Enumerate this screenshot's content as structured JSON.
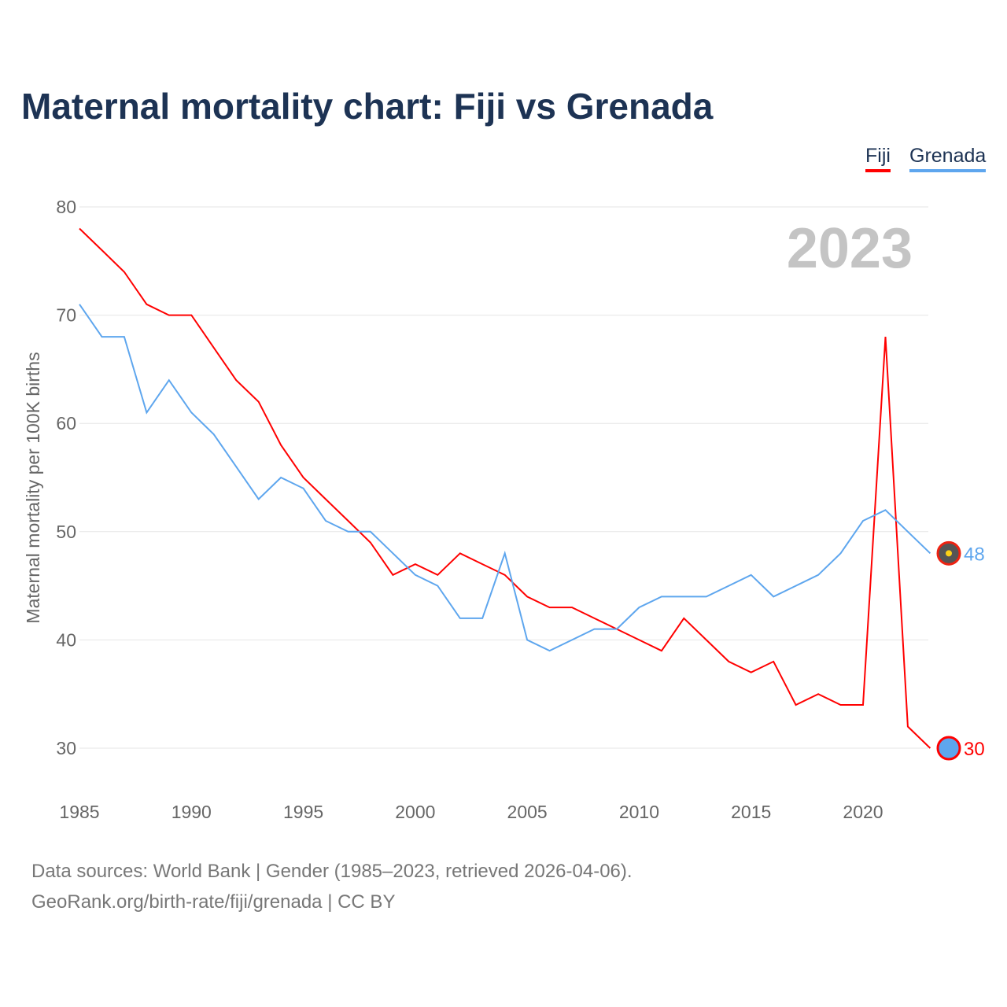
{
  "title": "Maternal mortality chart: Fiji vs Grenada",
  "year_label": "2023",
  "footer": {
    "line1": "Data sources: World Bank | Gender (1985–2023, retrieved 2026-04-06).",
    "line2": "GeoRank.org/birth-rate/fiji/grenada | CC BY"
  },
  "chart_data": {
    "type": "line",
    "title": "Maternal mortality chart: Fiji vs Grenada",
    "xlabel": "",
    "ylabel": "Maternal mortality per 100K births",
    "xlim": [
      1985,
      2023
    ],
    "ylim": [
      30,
      80
    ],
    "xticks": [
      1985,
      1990,
      1995,
      2000,
      2005,
      2010,
      2015,
      2020
    ],
    "yticks": [
      30,
      40,
      50,
      60,
      70,
      80
    ],
    "legend_position": "top-right",
    "x": [
      1985,
      1986,
      1987,
      1988,
      1989,
      1990,
      1991,
      1992,
      1993,
      1994,
      1995,
      1996,
      1997,
      1998,
      1999,
      2000,
      2001,
      2002,
      2003,
      2004,
      2005,
      2006,
      2007,
      2008,
      2009,
      2010,
      2011,
      2012,
      2013,
      2014,
      2015,
      2016,
      2017,
      2018,
      2019,
      2020,
      2021,
      2022,
      2023
    ],
    "series": [
      {
        "name": "Fiji",
        "color": "#ff0000",
        "end_label": "30",
        "values": [
          78,
          76,
          74,
          71,
          70,
          70,
          67,
          64,
          62,
          58,
          55,
          53,
          51,
          49,
          46,
          47,
          46,
          48,
          47,
          46,
          44,
          43,
          43,
          42,
          41,
          40,
          39,
          42,
          40,
          38,
          37,
          38,
          34,
          35,
          34,
          34,
          68,
          32,
          30
        ]
      },
      {
        "name": "Grenada",
        "color": "#5ea6ee",
        "end_label": "48",
        "values": [
          71,
          68,
          68,
          61,
          64,
          61,
          59,
          56,
          53,
          55,
          54,
          51,
          50,
          50,
          48,
          46,
          45,
          42,
          42,
          48,
          40,
          39,
          40,
          41,
          41,
          43,
          44,
          44,
          44,
          45,
          46,
          44,
          45,
          46,
          48,
          51,
          52,
          50,
          48
        ]
      }
    ]
  }
}
